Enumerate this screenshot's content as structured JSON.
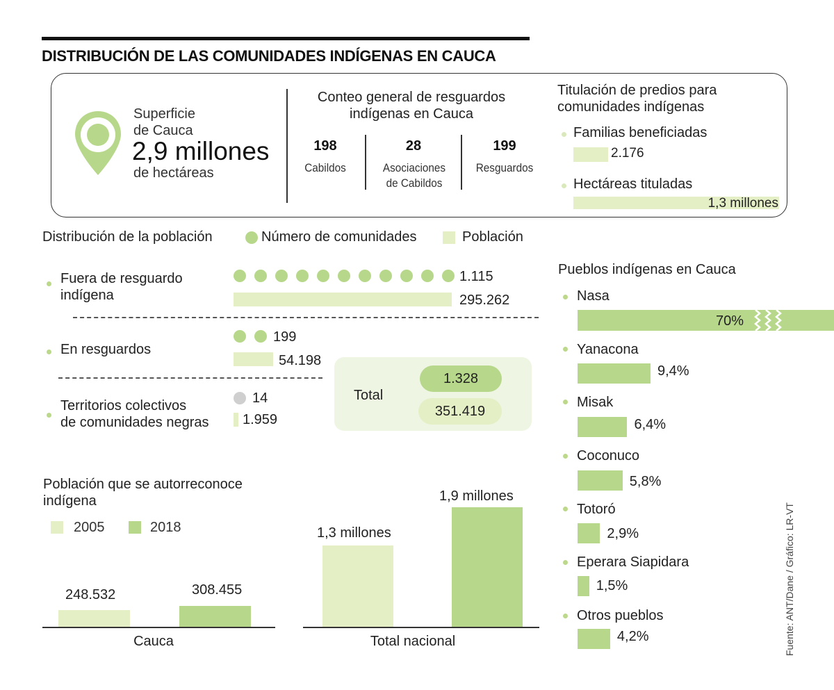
{
  "title": "DISTRIBUCIÓN DE LAS COMUNIDADES INDÍGENAS EN CAUCA",
  "superficie": {
    "label_line1": "Superficie",
    "label_line2": "de Cauca",
    "value": "2,9 millones",
    "unit": "de hectáreas",
    "icon": "location-pin-icon"
  },
  "conteo": {
    "title_line1": "Conteo general de resguardos",
    "title_line2": "indígenas en Cauca",
    "items": [
      {
        "value": "198",
        "label_line1": "Cabildos",
        "label_line2": ""
      },
      {
        "value": "28",
        "label_line1": "Asociaciones",
        "label_line2": "de Cabildos"
      },
      {
        "value": "199",
        "label_line1": "Resguardos",
        "label_line2": ""
      }
    ]
  },
  "titulacion": {
    "title_line1": "Titulación de predios para",
    "title_line2": "comunidades indígenas",
    "familias_label": "Familias beneficiadas",
    "familias_value": "2.176",
    "hectareas_label": "Hectáreas tituladas",
    "hectareas_value": "1,3 millones"
  },
  "distribucion": {
    "title": "Distribución de la población",
    "legend_communities": "Número de comunidades",
    "legend_population": "Población",
    "rows": [
      {
        "label_line1": "Fuera de resguardo",
        "label_line2": "indígena",
        "communities": "1.115",
        "population": "295.262"
      },
      {
        "label_line1": "En resguardos",
        "label_line2": "",
        "communities": "199",
        "population": "54.198"
      },
      {
        "label_line1": "Territorios colectivos",
        "label_line2": "de comunidades negras",
        "communities": "14",
        "population": "1.959"
      }
    ],
    "total_label": "Total",
    "total_communities": "1.328",
    "total_population": "351.419"
  },
  "autorreconoce": {
    "title_line1": "Población que se autorreconoce",
    "title_line2": "indígena",
    "legend_2005": "2005",
    "legend_2018": "2018"
  },
  "pueblos": {
    "title": "Pueblos indígenas en Cauca"
  },
  "source": "Fuente: ANT/Dane / Gráfico: LR-VT",
  "colors": {
    "light_green": "#e4efc5",
    "mid_green": "#b7d88a",
    "gray_dot": "#cfcfcf"
  },
  "chart_data": [
    {
      "type": "bar",
      "title": "Población que se autorreconoce indígena",
      "categories": [
        "Cauca",
        "Total nacional"
      ],
      "series": [
        {
          "name": "2005",
          "values": [
            248532,
            1300000
          ]
        },
        {
          "name": "2018",
          "values": [
            308455,
            1900000
          ]
        }
      ],
      "value_labels": [
        [
          "248.532",
          "1,3 millones"
        ],
        [
          "308.455",
          "1,9 millones"
        ]
      ]
    },
    {
      "type": "bar",
      "title": "Pueblos indígenas en Cauca",
      "categories": [
        "Nasa",
        "Yanacona",
        "Misak",
        "Coconuco",
        "Totoró",
        "Eperara Siapidara",
        "Otros pueblos"
      ],
      "values": [
        70,
        9.4,
        6.4,
        5.8,
        2.9,
        1.5,
        4.2
      ],
      "value_labels": [
        "70%",
        "9,4%",
        "6,4%",
        "5,8%",
        "2,9%",
        "1,5%",
        "4,2%"
      ]
    }
  ]
}
